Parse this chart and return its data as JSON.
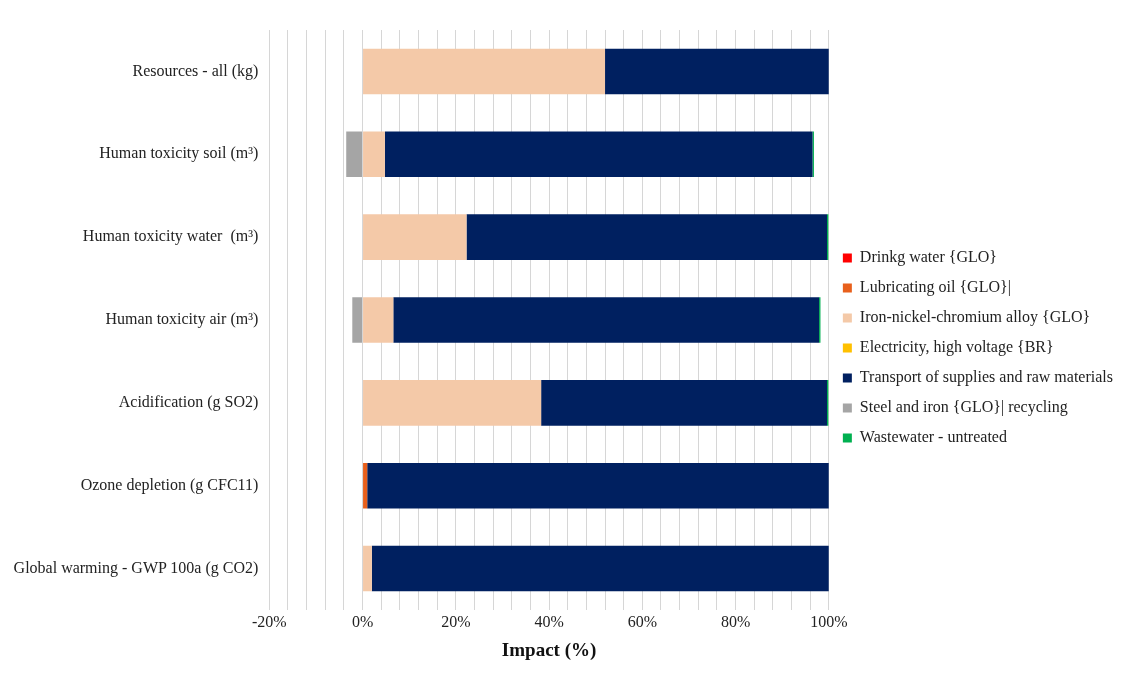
{
  "chart_data": {
    "type": "bar",
    "orientation": "horizontal",
    "stacked": true,
    "xlabel": "Impact (%)",
    "categories": [
      "Resources - all (kg)",
      "Human toxicity soil (m³)",
      "Human toxicity water  (m³)",
      "Human toxicity air (m³)",
      "Acidification (g SO2)",
      "Ozone depletion (g CFC11)",
      "Global warming - GWP 100a (g CO2)"
    ],
    "series": [
      {
        "name": "Drinkg water {GLO}",
        "color": "#ff0000",
        "values": [
          0,
          0,
          0,
          0,
          0,
          0,
          0
        ]
      },
      {
        "name": "Lubricating oil {GLO}|",
        "color": "#e8601c",
        "values": [
          0,
          0,
          0,
          0,
          0,
          1,
          0
        ]
      },
      {
        "name": "Iron-nickel-chromium alloy {GLO}",
        "color": "#f4c9a8",
        "values": [
          52,
          4.8,
          22.3,
          6.6,
          38.3,
          0,
          2
        ]
      },
      {
        "name": "Electricity, high voltage {BR}",
        "color": "#ffc000",
        "values": [
          0,
          0,
          0,
          0,
          0,
          0,
          0
        ]
      },
      {
        "name": "Transport of supplies and raw materials",
        "color": "#002060",
        "values": [
          48,
          91.7,
          77.3,
          91.3,
          61.3,
          99,
          98
        ]
      },
      {
        "name": "Steel and iron {GLO}| recycling",
        "color": "#a5a5a5",
        "values": [
          0,
          -3.5,
          0,
          -2.2,
          0,
          0,
          0
        ]
      },
      {
        "name": "Wastewater - untreated",
        "color": "#00b050",
        "values": [
          0,
          0.3,
          0.3,
          0.3,
          0.3,
          0,
          0
        ]
      }
    ],
    "xlim": [
      -20,
      100
    ],
    "xticks": [
      {
        "value": -20,
        "label": "-20%"
      },
      {
        "value": -16,
        "label": null
      },
      {
        "value": -12,
        "label": null
      },
      {
        "value": -8,
        "label": null
      },
      {
        "value": -4,
        "label": null
      },
      {
        "value": 0,
        "label": "0%"
      },
      {
        "value": 4,
        "label": null
      },
      {
        "value": 8,
        "label": null
      },
      {
        "value": 12,
        "label": null
      },
      {
        "value": 16,
        "label": null
      },
      {
        "value": 20,
        "label": "20%"
      },
      {
        "value": 24,
        "label": null
      },
      {
        "value": 28,
        "label": null
      },
      {
        "value": 32,
        "label": null
      },
      {
        "value": 36,
        "label": null
      },
      {
        "value": 40,
        "label": "40%"
      },
      {
        "value": 44,
        "label": null
      },
      {
        "value": 48,
        "label": null
      },
      {
        "value": 52,
        "label": null
      },
      {
        "value": 56,
        "label": null
      },
      {
        "value": 60,
        "label": "60%"
      },
      {
        "value": 64,
        "label": null
      },
      {
        "value": 68,
        "label": null
      },
      {
        "value": 72,
        "label": null
      },
      {
        "value": 76,
        "label": null
      },
      {
        "value": 80,
        "label": "80%"
      },
      {
        "value": 84,
        "label": null
      },
      {
        "value": 88,
        "label": null
      },
      {
        "value": 92,
        "label": null
      },
      {
        "value": 96,
        "label": null
      },
      {
        "value": 100,
        "label": "100%"
      }
    ],
    "grid": "x",
    "legend": "right"
  }
}
